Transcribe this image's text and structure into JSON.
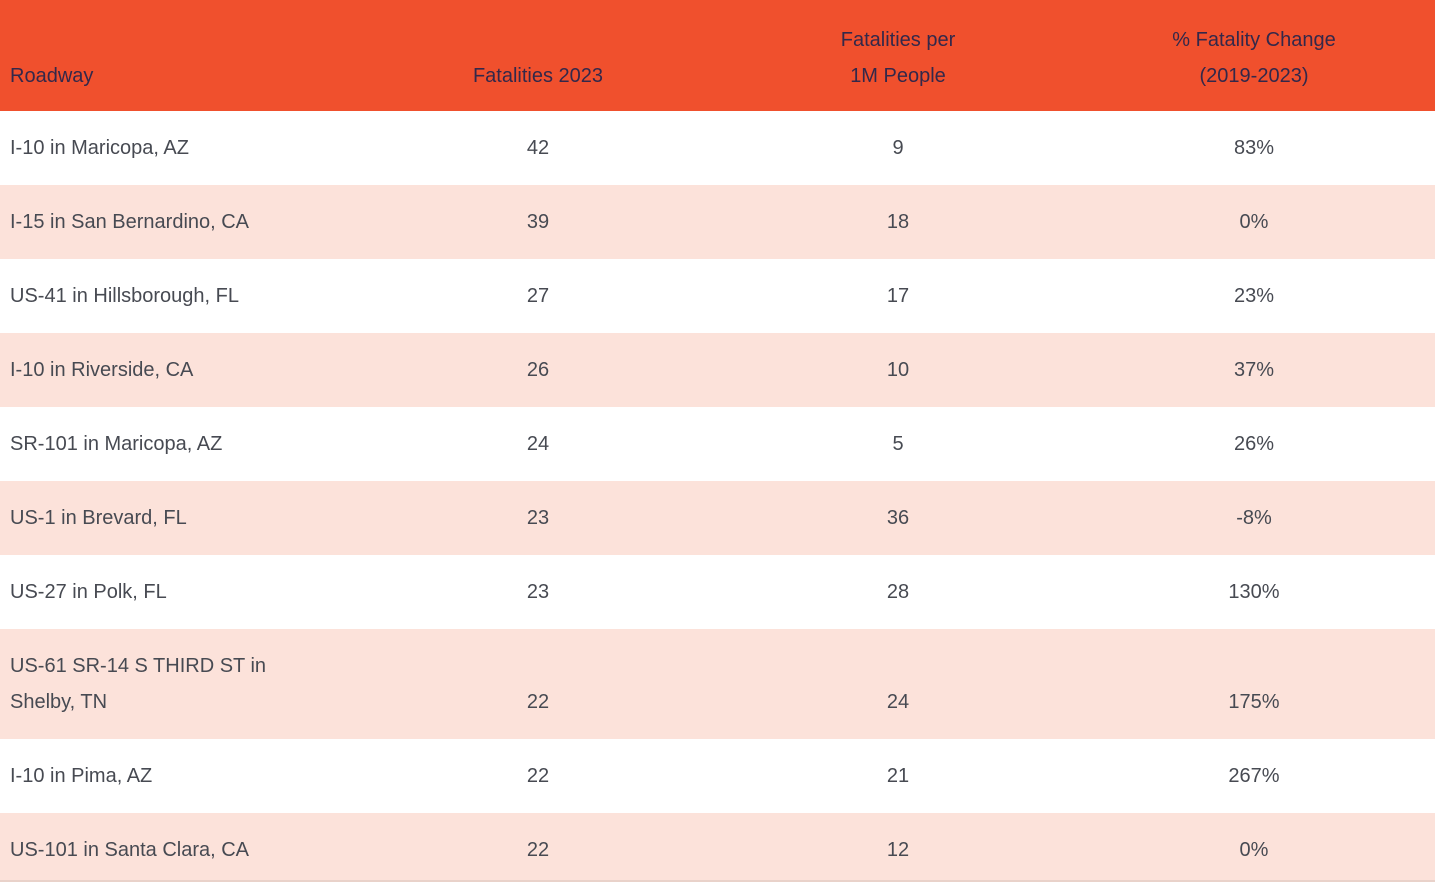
{
  "theme": {
    "header_bg": "#F0502D",
    "row_bg": "#FFFFFF",
    "row_alt_bg": "#FCE2DA",
    "header_text": "#33284A",
    "body_text": "#474A52"
  },
  "chart_data": {
    "type": "table",
    "title": "",
    "columns": [
      "Roadway",
      "Fatalities 2023",
      "Fatalities per\n1M People",
      "% Fatality Change\n(2019-2023)"
    ],
    "rows": [
      {
        "roadway": "I-10 in Maricopa, AZ",
        "fatalities_2023": "42",
        "fatalities_per_1m": "9",
        "pct_fatality_change": "83%"
      },
      {
        "roadway": "I-15 in San Bernardino, CA",
        "fatalities_2023": "39",
        "fatalities_per_1m": "18",
        "pct_fatality_change": "0%"
      },
      {
        "roadway": "US-41 in Hillsborough, FL",
        "fatalities_2023": "27",
        "fatalities_per_1m": "17",
        "pct_fatality_change": "23%"
      },
      {
        "roadway": "I-10 in Riverside, CA",
        "fatalities_2023": "26",
        "fatalities_per_1m": "10",
        "pct_fatality_change": "37%"
      },
      {
        "roadway": "SR-101 in Maricopa, AZ",
        "fatalities_2023": "24",
        "fatalities_per_1m": "5",
        "pct_fatality_change": "26%"
      },
      {
        "roadway": "US-1 in Brevard, FL",
        "fatalities_2023": "23",
        "fatalities_per_1m": "36",
        "pct_fatality_change": "-8%"
      },
      {
        "roadway": "US-27 in Polk, FL",
        "fatalities_2023": "23",
        "fatalities_per_1m": "28",
        "pct_fatality_change": "130%"
      },
      {
        "roadway": "US-61 SR-14 S THIRD ST in\nShelby, TN",
        "fatalities_2023": "22",
        "fatalities_per_1m": "24",
        "pct_fatality_change": "175%"
      },
      {
        "roadway": "I-10 in Pima, AZ",
        "fatalities_2023": "22",
        "fatalities_per_1m": "21",
        "pct_fatality_change": "267%"
      },
      {
        "roadway": "US-101 in Santa Clara, CA",
        "fatalities_2023": "22",
        "fatalities_per_1m": "12",
        "pct_fatality_change": "0%"
      }
    ]
  }
}
